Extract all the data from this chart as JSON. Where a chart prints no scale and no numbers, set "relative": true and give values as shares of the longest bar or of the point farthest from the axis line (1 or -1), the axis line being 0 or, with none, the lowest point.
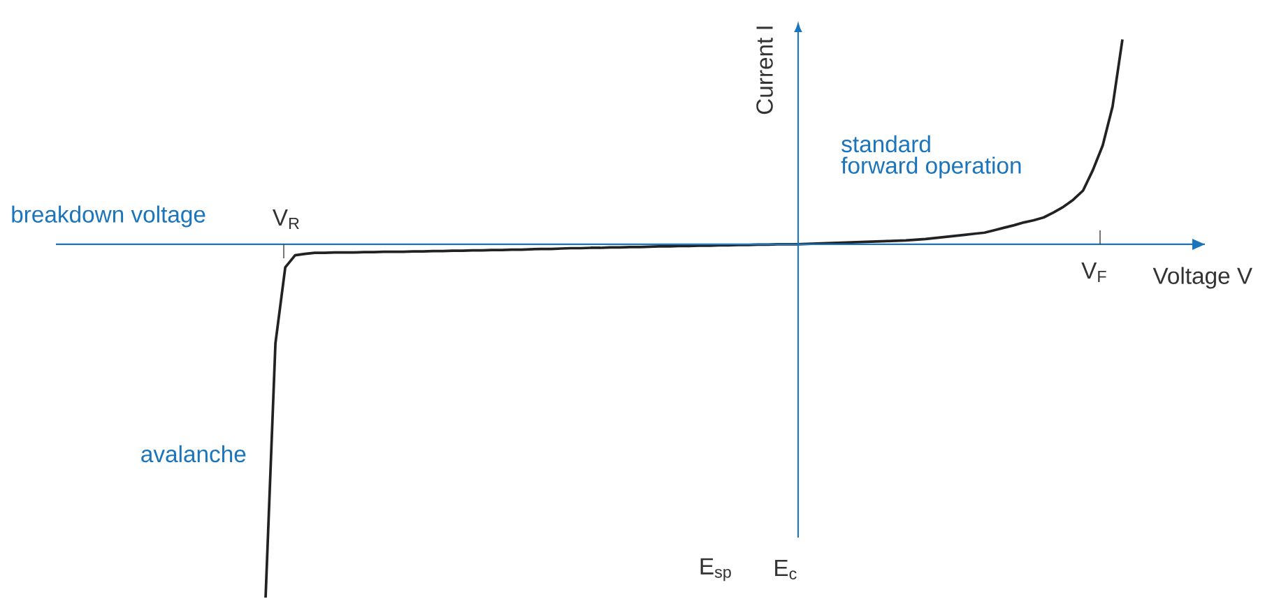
{
  "chart_data": {
    "type": "line",
    "relative": true,
    "xlabel": "Voltage V",
    "ylabel": "Current I",
    "categories": [
      null,
      null,
      null,
      null,
      null,
      null,
      null,
      null,
      null,
      null,
      null,
      null,
      null,
      null,
      null,
      null,
      null,
      null,
      null,
      null,
      null,
      null,
      null,
      null,
      null,
      null,
      null,
      null,
      null,
      null,
      null,
      null,
      null,
      null,
      null,
      null,
      null,
      null,
      null,
      null,
      null,
      null,
      null,
      null,
      null,
      null,
      null,
      null,
      null,
      null,
      null,
      null,
      null,
      null,
      null,
      null,
      null,
      null,
      null,
      null,
      null,
      null,
      null,
      null,
      null,
      null,
      null,
      null,
      null,
      null,
      null,
      null,
      null,
      null,
      null,
      null,
      null,
      null,
      null,
      null,
      null,
      null,
      null,
      null,
      null,
      null,
      null,
      null
    ],
    "series": [
      {
        "color": "#222222",
        "values": [
          -1.0,
          -0.28,
          -0.065,
          -0.031,
          -0.027,
          -0.024,
          -0.024,
          -0.023,
          -0.023,
          -0.023,
          -0.022,
          -0.022,
          -0.021,
          -0.021,
          -0.021,
          -0.02,
          -0.02,
          -0.019,
          -0.019,
          -0.018,
          -0.018,
          -0.017,
          -0.017,
          -0.016,
          -0.016,
          -0.015,
          -0.015,
          -0.014,
          -0.013,
          -0.013,
          -0.012,
          -0.011,
          -0.011,
          -0.01,
          -0.01,
          -0.009,
          -0.009,
          -0.008,
          -0.008,
          -0.007,
          -0.006,
          -0.006,
          -0.005,
          -0.005,
          -0.004,
          -0.004,
          -0.003,
          -0.003,
          -0.002,
          -0.002,
          -0.001,
          -0.001,
          0,
          0,
          0,
          0.001,
          0.002,
          0.003,
          0.004,
          0.005,
          0.006,
          0.007,
          0.008,
          0.009,
          0.01,
          0.011,
          0.013,
          0.015,
          0.018,
          0.021,
          0.024,
          0.027,
          0.03,
          0.033,
          0.04,
          0.047,
          0.054,
          0.062,
          0.068,
          0.076,
          0.09,
          0.106,
          0.126,
          0.152,
          0.21,
          0.28,
          0.39,
          0.58
        ]
      }
    ],
    "ref_lines": [
      {
        "axis": "y",
        "value": 0,
        "color": "#1b75bc"
      }
    ],
    "annotations": [
      "breakdown voltage",
      "avalanche",
      "standard",
      "forward operation",
      "E$_{sp}$",
      "E$_{c}$",
      "V$_{R}$",
      "V$_{F}$"
    ]
  }
}
